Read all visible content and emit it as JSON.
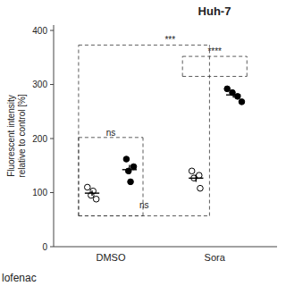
{
  "chart_data": {
    "type": "strip",
    "title": "Huh-7",
    "y_label": "Fluorescent intensity\nrelative to control [%]",
    "categories": [
      "DMSO",
      "Sora"
    ],
    "ylim": [
      0,
      410
    ],
    "yticks": [
      0,
      100,
      200,
      300,
      400
    ],
    "series": [
      {
        "color": "white",
        "marker": "circle",
        "values": [
          [
            110,
            103,
            95,
            88
          ],
          [
            140,
            132,
            127,
            108
          ]
        ],
        "mean": [
          99,
          126.75
        ],
        "sem": [
          4.7784,
          6.7992
        ]
      },
      {
        "color": "black",
        "marker": "circle",
        "values": [
          [
            162,
            148,
            140,
            120
          ],
          [
            292,
            285,
            278,
            268
          ]
        ],
        "mean": [
          142.5,
          280.75
        ],
        "sem": [
          8.7702,
          5.1214
        ]
      }
    ],
    "brackets": [
      {
        "from": [
          0,
          0
        ],
        "to": [
          1,
          0
        ],
        "bottom": 57,
        "top": 373
      },
      {
        "from": [
          0,
          0
        ],
        "to": [
          0,
          1
        ],
        "bottom": 57,
        "top": 202
      },
      {
        "from": [
          1,
          0
        ],
        "to": [
          1,
          1
        ],
        "bottom": 315,
        "top": 352
      }
    ],
    "annotations": [
      {
        "text": "ns",
        "y": 70,
        "bracket": 0
      },
      {
        "text": "***",
        "y": 376,
        "bracket": 0
      },
      {
        "text": "ns",
        "y": 204,
        "bracket": 1
      },
      {
        "text": "****",
        "y": 354,
        "bracket": 2
      }
    ],
    "footnote": "lofenac"
  }
}
